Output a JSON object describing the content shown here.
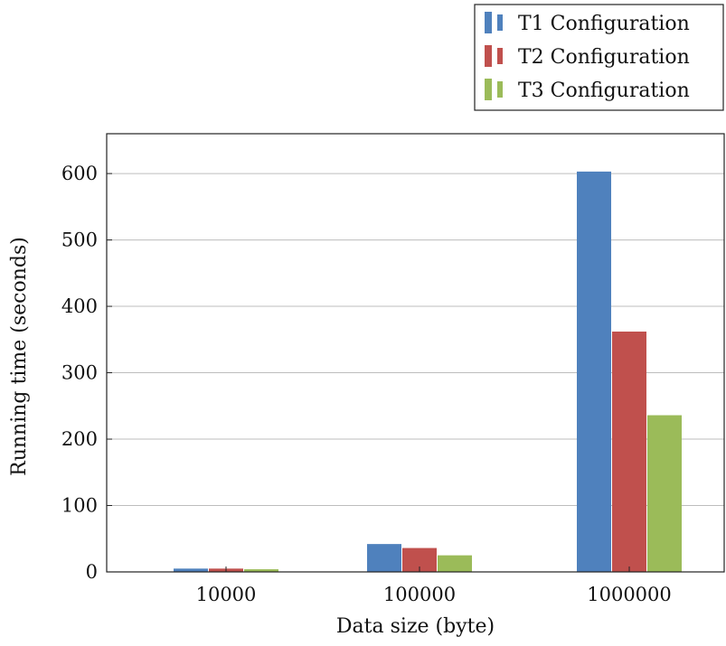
{
  "chart_data": {
    "type": "bar",
    "categories": [
      "10000",
      "100000",
      "1000000"
    ],
    "series": [
      {
        "name": "T1 Configuration",
        "color": "#4f81bd",
        "values": [
          5,
          42,
          603
        ]
      },
      {
        "name": "T2 Configuration",
        "color": "#c0504d",
        "values": [
          5,
          36,
          362
        ]
      },
      {
        "name": "T3 Configuration",
        "color": "#9bbb59",
        "values": [
          4,
          25,
          236
        ]
      }
    ],
    "xlabel": "Data size (byte)",
    "ylabel": "Running time (seconds)",
    "ylim": [
      0,
      660
    ],
    "yticks": [
      0,
      100,
      200,
      300,
      400,
      500,
      600
    ],
    "grid": true,
    "legend_position": "top-right"
  }
}
